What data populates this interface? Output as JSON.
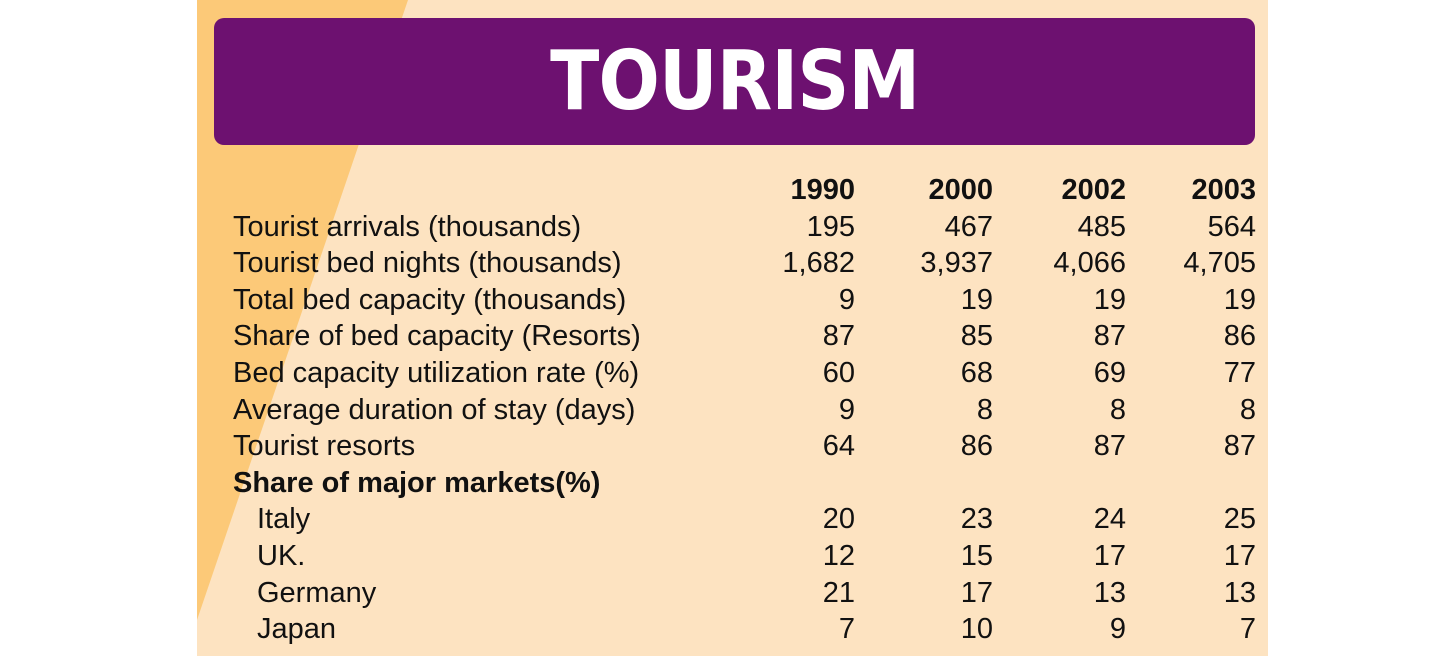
{
  "title": "TOURISM",
  "columns": [
    "1990",
    "2000",
    "2002",
    "2003"
  ],
  "colors": {
    "panel": "#fde3c1",
    "stripe": "#fcc978",
    "banner": "#6d1170",
    "title_text": "#ffffff"
  },
  "chart_data": {
    "type": "table",
    "title": "TOURISM",
    "columns": [
      "1990",
      "2000",
      "2002",
      "2003"
    ],
    "rows": [
      {
        "label": "Tourist arrivals (thousands)",
        "values": [
          "195",
          "467",
          "485",
          "564"
        ]
      },
      {
        "label": "Tourist bed nights (thousands)",
        "values": [
          "1,682",
          "3,937",
          "4,066",
          "4,705"
        ]
      },
      {
        "label": "Total bed capacity (thousands)",
        "values": [
          "9",
          "19",
          "19",
          "19"
        ]
      },
      {
        "label": "Share of bed capacity (Resorts)",
        "values": [
          "87",
          "85",
          "87",
          "86"
        ]
      },
      {
        "label": "Bed capacity utilization rate (%)",
        "values": [
          "60",
          "68",
          "69",
          "77"
        ]
      },
      {
        "label": "Average duration of stay (days)",
        "values": [
          "9",
          "8",
          "8",
          "8"
        ]
      },
      {
        "label": "Tourist resorts",
        "values": [
          "64",
          "86",
          "87",
          "87"
        ]
      }
    ],
    "section": {
      "label": "Share of major markets(%)",
      "rows": [
        {
          "label": "Italy",
          "values": [
            "20",
            "23",
            "24",
            "25"
          ]
        },
        {
          "label": "UK.",
          "values": [
            "12",
            "15",
            "17",
            "17"
          ]
        },
        {
          "label": "Germany",
          "values": [
            "21",
            "17",
            "13",
            "13"
          ]
        },
        {
          "label": "Japan",
          "values": [
            "7",
            "10",
            "9",
            "7"
          ]
        }
      ]
    }
  }
}
